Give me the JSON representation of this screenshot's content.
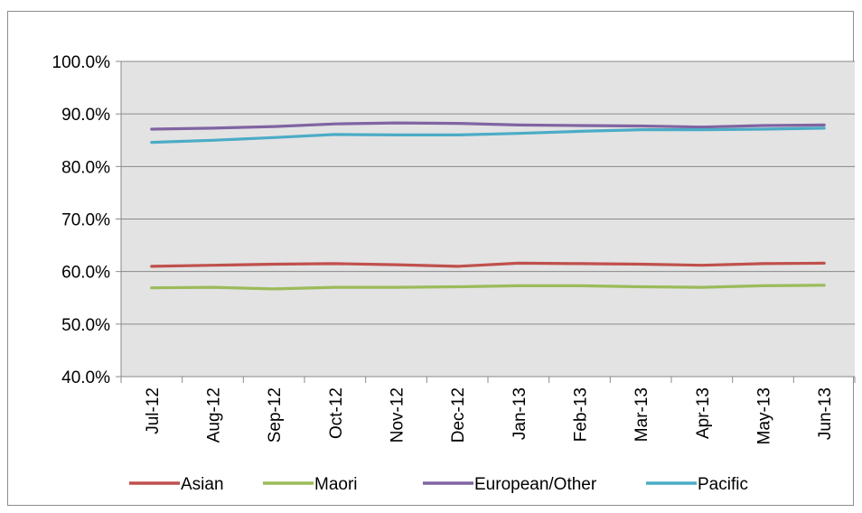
{
  "chart_data": {
    "type": "line",
    "title": "",
    "xlabel": "",
    "ylabel": "",
    "categories": [
      "Jul-12",
      "Aug-12",
      "Sep-12",
      "Oct-12",
      "Nov-12",
      "Dec-12",
      "Jan-13",
      "Feb-13",
      "Mar-13",
      "Apr-13",
      "May-13",
      "Jun-13"
    ],
    "ylim": [
      40,
      100
    ],
    "yticks": [
      "40.0%",
      "50.0%",
      "60.0%",
      "70.0%",
      "80.0%",
      "90.0%",
      "100.0%"
    ],
    "grid": true,
    "legend_position": "bottom",
    "series": [
      {
        "name": "Asian",
        "color": "#c0504d",
        "values": [
          61.0,
          61.2,
          61.4,
          61.5,
          61.3,
          61.0,
          61.6,
          61.5,
          61.4,
          61.2,
          61.5,
          61.6
        ]
      },
      {
        "name": "Maori",
        "color": "#9bbb59",
        "values": [
          56.9,
          57.0,
          56.7,
          57.0,
          57.0,
          57.1,
          57.3,
          57.3,
          57.1,
          57.0,
          57.3,
          57.4
        ]
      },
      {
        "name": "European/Other",
        "color": "#8064a2",
        "values": [
          87.1,
          87.3,
          87.6,
          88.1,
          88.3,
          88.2,
          87.9,
          87.8,
          87.7,
          87.5,
          87.8,
          87.9
        ]
      },
      {
        "name": "Pacific",
        "color": "#4bacc6",
        "values": [
          84.6,
          85.0,
          85.5,
          86.1,
          86.0,
          86.0,
          86.3,
          86.7,
          87.0,
          87.0,
          87.1,
          87.3
        ]
      }
    ]
  }
}
